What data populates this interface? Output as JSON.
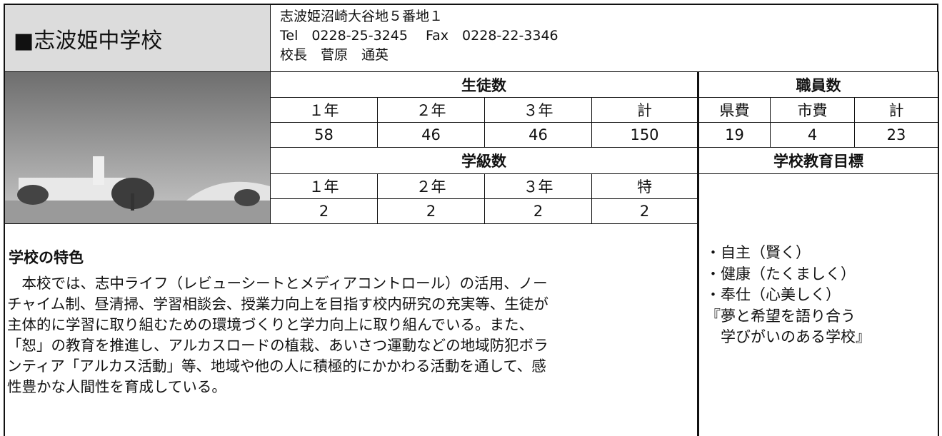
{
  "header": {
    "school_name": "■志波姫中学校",
    "address": "志波姫沼崎大谷地５番地１",
    "contact": "Tel　0228-25-3245　 Fax　0228-22-3346",
    "principal": "校長　菅原　通英"
  },
  "students": {
    "title": "生徒数",
    "headers": [
      "１年",
      "２年",
      "３年",
      "計"
    ],
    "values": [
      58,
      46,
      46,
      150
    ]
  },
  "staff": {
    "title": "職員数",
    "headers": [
      "県費",
      "市費",
      "計"
    ],
    "values": [
      19,
      4,
      23
    ]
  },
  "classes": {
    "title": "学級数",
    "headers": [
      "１年",
      "２年",
      "３年",
      "特"
    ],
    "values": [
      2,
      2,
      2,
      2
    ]
  },
  "goals": {
    "title": "学校教育目標",
    "items": [
      "・自主（賢く）",
      "・健康（たくましく）",
      "・奉仕（心美しく）",
      "『夢と希望を語り合う",
      "　学びがいのある学校』"
    ]
  },
  "features": {
    "title": "学校の特色",
    "lines": [
      "　本校では、志中ライフ（レビューシートとメディアコントロール）の活用、ノー",
      "チャイム制、昼清掃、学習相談会、授業力向上を目指す校内研究の充実等、生徒が",
      "主体的に学習に取り組むための環境づくりと学力向上に取り組んでいる。また、",
      "「恕」の教育を推進し、アルカスロードの植栽、あいさつ運動などの地域防犯ボラ",
      "ンティア「アルカス活動」等、地域や他の人に積極的にかかわる活動を通して、感",
      "性豊かな人間性を育成している。"
    ]
  }
}
